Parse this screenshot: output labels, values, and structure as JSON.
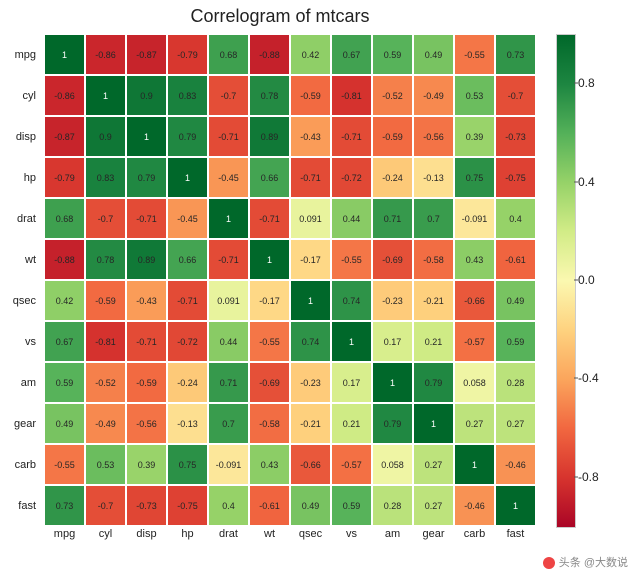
{
  "title": "Correlogram of mtcars",
  "title_fontsize": 18,
  "watermark": "头条 @大数说",
  "heatmap": {
    "type": "heatmap",
    "labels": [
      "mpg",
      "cyl",
      "disp",
      "hp",
      "drat",
      "wt",
      "qsec",
      "vs",
      "am",
      "gear",
      "carb",
      "fast"
    ],
    "matrix": [
      [
        1,
        -0.86,
        -0.87,
        -0.79,
        0.68,
        -0.88,
        0.42,
        0.67,
        0.59,
        0.49,
        -0.55,
        0.73
      ],
      [
        -0.86,
        1,
        0.9,
        0.83,
        -0.7,
        0.78,
        -0.59,
        -0.81,
        -0.52,
        -0.49,
        0.53,
        -0.7
      ],
      [
        -0.87,
        0.9,
        1,
        0.79,
        -0.71,
        0.89,
        -0.43,
        -0.71,
        -0.59,
        -0.56,
        0.39,
        -0.73
      ],
      [
        -0.79,
        0.83,
        0.79,
        1,
        -0.45,
        0.66,
        -0.71,
        -0.72,
        -0.24,
        -0.13,
        0.75,
        -0.75
      ],
      [
        0.68,
        -0.7,
        -0.71,
        -0.45,
        1,
        -0.71,
        0.091,
        0.44,
        0.71,
        0.7,
        -0.091,
        0.4
      ],
      [
        -0.88,
        0.78,
        0.89,
        0.66,
        -0.71,
        1,
        -0.17,
        -0.55,
        -0.69,
        -0.58,
        0.43,
        -0.61
      ],
      [
        0.42,
        -0.59,
        -0.43,
        -0.71,
        0.091,
        -0.17,
        1,
        0.74,
        -0.23,
        -0.21,
        -0.66,
        0.49
      ],
      [
        0.67,
        -0.81,
        -0.71,
        -0.72,
        0.44,
        -0.55,
        0.74,
        1,
        0.17,
        0.21,
        -0.57,
        0.59
      ],
      [
        0.59,
        -0.52,
        -0.59,
        -0.24,
        0.71,
        -0.69,
        -0.23,
        0.17,
        1,
        0.79,
        0.058,
        0.28
      ],
      [
        0.49,
        -0.49,
        -0.56,
        -0.13,
        0.7,
        -0.58,
        -0.21,
        0.21,
        0.79,
        1,
        0.27,
        0.27
      ],
      [
        -0.55,
        0.53,
        0.39,
        0.75,
        -0.091,
        0.43,
        -0.66,
        -0.57,
        0.058,
        0.27,
        1,
        -0.46
      ],
      [
        0.73,
        -0.7,
        -0.73,
        -0.75,
        0.4,
        -0.61,
        0.49,
        0.59,
        0.28,
        0.27,
        -0.46,
        1
      ]
    ],
    "display": [
      [
        "1",
        "-0.86",
        "-0.87",
        "-0.79",
        "0.68",
        "-0.88",
        "0.42",
        "0.67",
        "0.59",
        "0.49",
        "-0.55",
        "0.73"
      ],
      [
        "-0.86",
        "1",
        "0.9",
        "0.83",
        "-0.7",
        "0.78",
        "-0.59",
        "-0.81",
        "-0.52",
        "-0.49",
        "0.53",
        "-0.7"
      ],
      [
        "-0.87",
        "0.9",
        "1",
        "0.79",
        "-0.71",
        "0.89",
        "-0.43",
        "-0.71",
        "-0.59",
        "-0.56",
        "0.39",
        "-0.73"
      ],
      [
        "-0.79",
        "0.83",
        "0.79",
        "1",
        "-0.45",
        "0.66",
        "-0.71",
        "-0.72",
        "-0.24",
        "-0.13",
        "0.75",
        "-0.75"
      ],
      [
        "0.68",
        "-0.7",
        "-0.71",
        "-0.45",
        "1",
        "-0.71",
        "0.091",
        "0.44",
        "0.71",
        "0.7",
        "-0.091",
        "0.4"
      ],
      [
        "-0.88",
        "0.78",
        "0.89",
        "0.66",
        "-0.71",
        "1",
        "-0.17",
        "-0.55",
        "-0.69",
        "-0.58",
        "0.43",
        "-0.61"
      ],
      [
        "0.42",
        "-0.59",
        "-0.43",
        "-0.71",
        "0.091",
        "-0.17",
        "1",
        "0.74",
        "-0.23",
        "-0.21",
        "-0.66",
        "0.49"
      ],
      [
        "0.67",
        "-0.81",
        "-0.71",
        "-0.72",
        "0.44",
        "-0.55",
        "0.74",
        "1",
        "0.17",
        "0.21",
        "-0.57",
        "0.59"
      ],
      [
        "0.59",
        "-0.52",
        "-0.59",
        "-0.24",
        "0.71",
        "-0.69",
        "-0.23",
        "0.17",
        "1",
        "0.79",
        "0.058",
        "0.28"
      ],
      [
        "0.49",
        "-0.49",
        "-0.56",
        "-0.13",
        "0.7",
        "-0.58",
        "-0.21",
        "0.21",
        "0.79",
        "1",
        "0.27",
        "0.27"
      ],
      [
        "-0.55",
        "0.53",
        "0.39",
        "0.75",
        "-0.091",
        "0.43",
        "-0.66",
        "-0.57",
        "0.058",
        "0.27",
        "1",
        "-0.46"
      ],
      [
        "0.73",
        "-0.7",
        "-0.73",
        "-0.75",
        "0.4",
        "-0.61",
        "0.49",
        "0.59",
        "0.28",
        "0.27",
        "-0.46",
        "1"
      ]
    ],
    "label_fontsize": 11,
    "cell_fontsize": 9,
    "cell_text_color": "#262626",
    "diag_text_color": "#ffffff",
    "border_color": "#ffffff",
    "colormap": {
      "vmin": -1,
      "vmax": 1,
      "stops": [
        [
          -1.0,
          "#aa0526"
        ],
        [
          -0.8,
          "#d7342e"
        ],
        [
          -0.6,
          "#f16740"
        ],
        [
          -0.4,
          "#fba55c"
        ],
        [
          -0.2,
          "#fed27f"
        ],
        [
          0.0,
          "#fbf8b0"
        ],
        [
          0.2,
          "#d2ec87"
        ],
        [
          0.4,
          "#96d268"
        ],
        [
          0.6,
          "#54b159"
        ],
        [
          0.8,
          "#1d8641"
        ],
        [
          1.0,
          "#00682a"
        ]
      ]
    },
    "colorbar_ticks": [
      -0.8,
      -0.4,
      0.0,
      0.4,
      0.8
    ]
  }
}
